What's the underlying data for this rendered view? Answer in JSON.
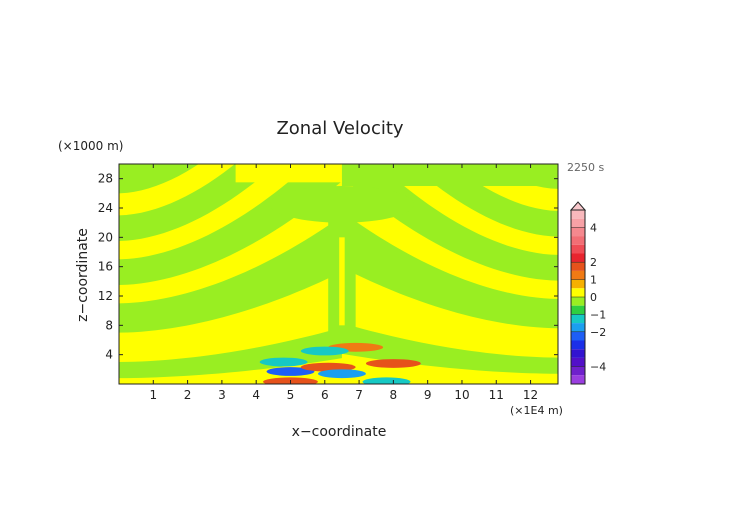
{
  "chart_data": {
    "type": "heatmap",
    "title": "Zonal Velocity",
    "xlabel": "x−coordinate",
    "ylabel": "z−coordinate",
    "x_unit": "(×1E4 m)",
    "y_unit": "(×1000 m)",
    "time_label": "2250 s",
    "xlim": [
      0,
      12.8
    ],
    "ylim": [
      0,
      30
    ],
    "x_ticks": [
      1,
      2,
      3,
      4,
      5,
      6,
      7,
      8,
      9,
      10,
      11,
      12
    ],
    "y_ticks": [
      4,
      8,
      12,
      16,
      20,
      24,
      28
    ],
    "grid": false,
    "colorbar": {
      "range": [
        -5,
        5
      ],
      "tick_labels": [
        {
          "value": 4,
          "label": "4"
        },
        {
          "value": 2,
          "label": "2"
        },
        {
          "value": 1,
          "label": "1"
        },
        {
          "value": 0,
          "label": "0"
        },
        {
          "value": -1,
          "label": "−1"
        },
        {
          "value": -2,
          "label": "−2"
        },
        {
          "value": -4,
          "label": "−4"
        }
      ],
      "levels": [
        {
          "from": 4.5,
          "to": 5,
          "color": "#f8b8bc"
        },
        {
          "from": 4,
          "to": 4.5,
          "color": "#f7a1a6"
        },
        {
          "from": 3.5,
          "to": 4,
          "color": "#f5888e"
        },
        {
          "from": 3,
          "to": 3.5,
          "color": "#f26e75"
        },
        {
          "from": 2.5,
          "to": 3,
          "color": "#ef4c55"
        },
        {
          "from": 2,
          "to": 2.5,
          "color": "#e8242e"
        },
        {
          "from": 1.5,
          "to": 2,
          "color": "#e6521b"
        },
        {
          "from": 1,
          "to": 1.5,
          "color": "#f07a14"
        },
        {
          "from": 0.5,
          "to": 1,
          "color": "#f6b000"
        },
        {
          "from": 0,
          "to": 0.5,
          "color": "#ffff00"
        },
        {
          "from": -0.5,
          "to": 0,
          "color": "#99ee22"
        },
        {
          "from": -1,
          "to": -0.5,
          "color": "#2fcf40"
        },
        {
          "from": -1.5,
          "to": -1,
          "color": "#16c9c4"
        },
        {
          "from": -2,
          "to": -1.5,
          "color": "#1b9ff0"
        },
        {
          "from": -2.5,
          "to": -2,
          "color": "#1e5ef5"
        },
        {
          "from": -3,
          "to": -2.5,
          "color": "#1b2fe8"
        },
        {
          "from": -3.5,
          "to": -3,
          "color": "#3213d0"
        },
        {
          "from": -4,
          "to": -3.5,
          "color": "#5210c8"
        },
        {
          "from": -4.5,
          "to": -4,
          "color": "#6f20cc"
        },
        {
          "from": -5,
          "to": -4.5,
          "color": "#9a3ee0"
        }
      ]
    },
    "background_value_green": -0.3,
    "background_value_yellow": 0.3,
    "features": [
      {
        "kind": "positive",
        "x": 5.0,
        "z": 0.3,
        "value": 1.8
      },
      {
        "kind": "negative",
        "x": 5.0,
        "z": 1.7,
        "value": -2.2
      },
      {
        "kind": "negative",
        "x": 4.8,
        "z": 3.0,
        "value": -1.3
      },
      {
        "kind": "positive",
        "x": 8.0,
        "z": 2.8,
        "value": 1.7
      },
      {
        "kind": "negative",
        "x": 7.8,
        "z": 0.3,
        "value": -1.4
      },
      {
        "kind": "positive",
        "x": 6.1,
        "z": 2.3,
        "value": 1.6
      },
      {
        "kind": "negative",
        "x": 6.5,
        "z": 1.4,
        "value": -2.0
      },
      {
        "kind": "positive",
        "x": 6.9,
        "z": 5.0,
        "value": 1.2
      },
      {
        "kind": "negative",
        "x": 6.0,
        "z": 4.5,
        "value": -1.1
      }
    ]
  }
}
